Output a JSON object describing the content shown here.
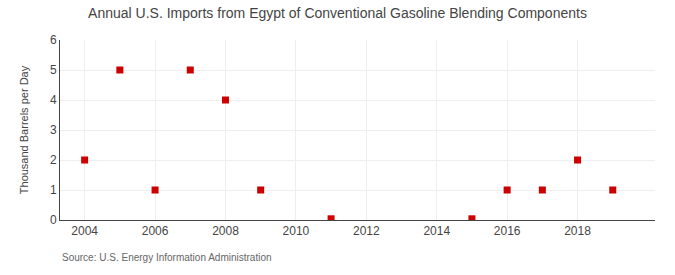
{
  "chart_data": {
    "type": "scatter",
    "title": "Annual U.S. Imports from Egypt of Conventional Gasoline Blending Components",
    "ylabel": "Thousand Barrels per Day",
    "annotations": [
      "Source: U.S. Energy Information Administration"
    ],
    "x": [
      2004,
      2005,
      2006,
      2007,
      2008,
      2009,
      2011,
      2015,
      2016,
      2017,
      2018,
      2019
    ],
    "values": [
      2,
      5,
      1,
      5,
      4,
      1,
      0.04,
      0.04,
      1,
      1,
      2,
      1
    ],
    "color": "#cc0000",
    "marker": "square",
    "xlim": [
      2003.3,
      2020.2
    ],
    "xticks": [
      2004,
      2006,
      2008,
      2010,
      2012,
      2014,
      2016,
      2018
    ],
    "ylim": [
      0,
      6
    ],
    "yticks": [
      0,
      1,
      2,
      3,
      4,
      5,
      6
    ],
    "grid": true
  }
}
